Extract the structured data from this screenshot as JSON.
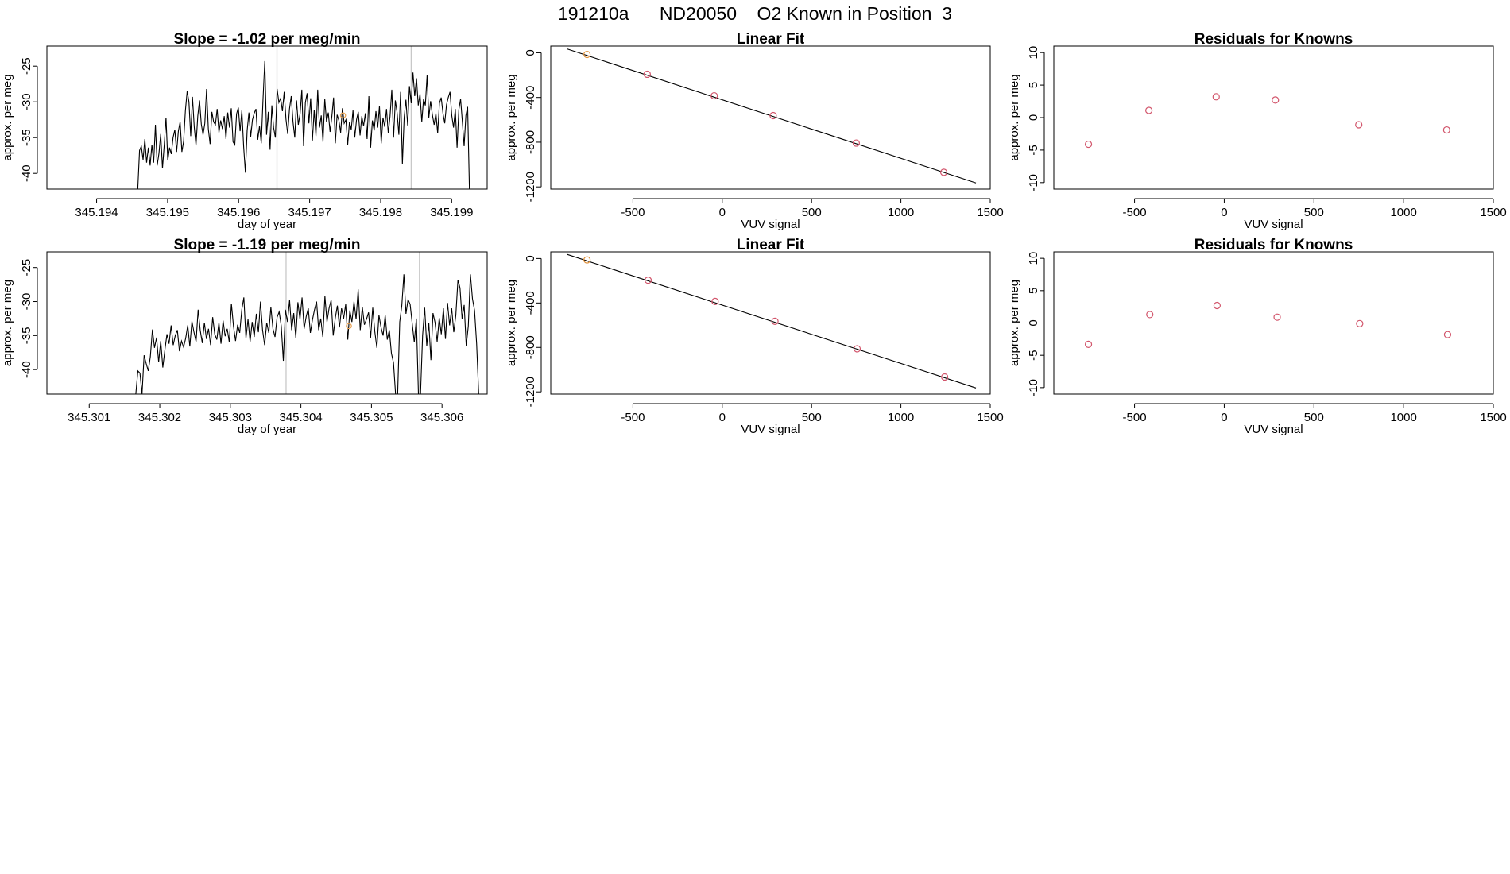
{
  "page_title": "191210a      ND20050    O2 Known in Position  3",
  "colors": {
    "line": "#000000",
    "marker": "#d2556b",
    "highlight_marker": "#e0913a",
    "marker_light": "#e8a050",
    "cursor": "#c8c8c8",
    "frame": "#000000"
  },
  "chart_data": [
    {
      "id": "ts1",
      "type": "line",
      "title": "Slope =  -1.02  per meg/min",
      "xlabel": "day of year",
      "ylabel": "approx. per meg",
      "xlim": [
        345.1933,
        345.1995
      ],
      "ylim": [
        -42.2,
        -22.2
      ],
      "x_ticks": [
        345.194,
        345.195,
        345.196,
        345.197,
        345.198,
        345.199
      ],
      "x_tick_labels": [
        "345.194",
        "345.195",
        "345.196",
        "345.197",
        "345.198",
        "345.199"
      ],
      "y_ticks": [
        -40,
        -35,
        -30,
        -25
      ],
      "y_tick_labels": [
        "-40",
        "-35",
        "-30",
        "-25"
      ],
      "vlines": [
        345.19654,
        345.19843
      ],
      "marked_point": {
        "x": 345.19747,
        "y": -31.9
      },
      "x_start": 345.19458,
      "x_end": 345.19925,
      "values": [
        -42.2,
        -36.8,
        -36.2,
        -38.1,
        -35.2,
        -38.5,
        -36.4,
        -38.9,
        -36.0,
        -38.5,
        -33.2,
        -38.9,
        -37.2,
        -34.5,
        -39.3,
        -36.0,
        -32.2,
        -38.2,
        -36.4,
        -37.3,
        -35.0,
        -33.9,
        -37.0,
        -34.1,
        -32.8,
        -37.0,
        -35.5,
        -31.2,
        -28.5,
        -30.0,
        -34.8,
        -29.3,
        -33.5,
        -36.1,
        -32.0,
        -29.8,
        -33.1,
        -34.6,
        -33.0,
        -28.2,
        -33.8,
        -35.9,
        -31.4,
        -32.8,
        -33.2,
        -31.0,
        -34.3,
        -32.6,
        -33.8,
        -32.0,
        -35.2,
        -31.5,
        -33.6,
        -30.9,
        -35.6,
        -36.0,
        -31.7,
        -30.8,
        -34.1,
        -31.2,
        -36.2,
        -39.9,
        -34.0,
        -31.5,
        -34.9,
        -32.5,
        -31.6,
        -31.0,
        -35.3,
        -33.4,
        -35.8,
        -29.6,
        -24.3,
        -34.6,
        -31.4,
        -36.7,
        -30.5,
        -33.6,
        -35.0,
        -28.2,
        -30.1,
        -29.5,
        -31.3,
        -28.6,
        -32.4,
        -34.5,
        -31.0,
        -29.2,
        -32.8,
        -35.0,
        -29.8,
        -33.2,
        -31.7,
        -28.3,
        -36.2,
        -30.1,
        -28.8,
        -33.0,
        -29.5,
        -35.4,
        -31.1,
        -34.8,
        -28.3,
        -33.6,
        -31.9,
        -35.6,
        -29.6,
        -32.8,
        -31.5,
        -34.2,
        -32.1,
        -29.4,
        -35.8,
        -31.8,
        -32.6,
        -34.3,
        -30.9,
        -33.0,
        -32.5,
        -36.0,
        -32.8,
        -33.9,
        -31.2,
        -35.0,
        -32.5,
        -31.4,
        -34.7,
        -32.0,
        -33.4,
        -31.6,
        -35.2,
        -29.2,
        -36.4,
        -32.6,
        -34.0,
        -31.3,
        -33.6,
        -30.6,
        -35.8,
        -32.2,
        -33.5,
        -31.0,
        -34.4,
        -32.0,
        -28.3,
        -35.0,
        -29.8,
        -31.5,
        -34.6,
        -28.6,
        -38.7,
        -32.2,
        -29.7,
        -33.3,
        -27.8,
        -30.2,
        -25.9,
        -29.2,
        -26.7,
        -30.5,
        -28.9,
        -32.8,
        -29.6,
        -30.5,
        -26.3,
        -32.2,
        -29.9,
        -31.8,
        -33.2,
        -31.6,
        -34.4,
        -30.2,
        -29.4,
        -31.6,
        -33.0,
        -30.4,
        -29.4,
        -28.6,
        -31.9,
        -33.6,
        -31.0,
        -36.4,
        -31.1,
        -29.6,
        -32.8,
        -36.2,
        -31.9,
        -30.7,
        -42.2
      ]
    },
    {
      "id": "fit1",
      "type": "scatter",
      "title": "Linear Fit",
      "xlabel": "VUV signal",
      "ylabel": "approx. per meg",
      "xlim": [
        -960,
        1500
      ],
      "ylim": [
        -1220,
        60
      ],
      "x_ticks": [
        -500,
        0,
        500,
        1000,
        1500
      ],
      "x_tick_labels": [
        "-500",
        "0",
        "500",
        "1000",
        "1500"
      ],
      "y_ticks": [
        -1200,
        -800,
        -400,
        0
      ],
      "y_tick_labels": [
        "-1200",
        "-800",
        "-400",
        "0"
      ],
      "points": [
        {
          "x": -757,
          "y": -15,
          "highlight": true
        },
        {
          "x": -420,
          "y": -192
        },
        {
          "x": -45,
          "y": -385
        },
        {
          "x": 285,
          "y": -562
        },
        {
          "x": 750,
          "y": -808
        },
        {
          "x": 1240,
          "y": -1070
        }
      ],
      "fit_line": {
        "x": [
          -870,
          1420
        ],
        "y": [
          35,
          -1165
        ]
      }
    },
    {
      "id": "res1",
      "type": "scatter",
      "title": "Residuals for Knowns",
      "xlabel": "VUV signal",
      "ylabel": "approx. per meg",
      "xlim": [
        -950,
        1500
      ],
      "ylim": [
        -11,
        11
      ],
      "x_ticks": [
        -500,
        0,
        500,
        1000,
        1500
      ],
      "x_tick_labels": [
        "-500",
        "0",
        "500",
        "1000",
        "1500"
      ],
      "y_ticks": [
        -10,
        -5,
        0,
        5,
        10
      ],
      "y_tick_labels": [
        "-10",
        "-5",
        "0",
        "5",
        "10"
      ],
      "points": [
        {
          "x": -757,
          "y": -4.1
        },
        {
          "x": -420,
          "y": 1.1
        },
        {
          "x": -45,
          "y": 3.2
        },
        {
          "x": 285,
          "y": 2.7
        },
        {
          "x": 750,
          "y": -1.1
        },
        {
          "x": 1240,
          "y": -1.9
        }
      ]
    },
    {
      "id": "ts2",
      "type": "line",
      "title": "Slope =  -1.19  per meg/min",
      "xlabel": "day of year",
      "ylabel": "approx. per meg",
      "xlim": [
        345.3004,
        345.30664
      ],
      "ylim": [
        -43.6,
        -22.7
      ],
      "x_ticks": [
        345.301,
        345.302,
        345.303,
        345.304,
        345.305,
        345.306
      ],
      "x_tick_labels": [
        "345.301",
        "345.302",
        "345.303",
        "345.304",
        "345.305",
        "345.306"
      ],
      "y_ticks": [
        -40,
        -35,
        -30,
        -25
      ],
      "y_tick_labels": [
        "-40",
        "-35",
        "-30",
        "-25"
      ],
      "vlines": [
        345.30379,
        345.30568
      ],
      "marked_point": {
        "x": 345.30468,
        "y": -33.6
      },
      "x_start": 345.30166,
      "x_end": 345.30652,
      "values": [
        -43.6,
        -40.2,
        -40.5,
        -43.6,
        -37.9,
        -39.1,
        -40.2,
        -38.1,
        -34.1,
        -36.8,
        -35.3,
        -38.9,
        -35.8,
        -39.7,
        -37.1,
        -34.8,
        -36.2,
        -33.5,
        -36.4,
        -35.0,
        -34.2,
        -37.3,
        -35.8,
        -36.7,
        -35.4,
        -33.5,
        -36.6,
        -32.9,
        -34.5,
        -35.9,
        -31.2,
        -34.2,
        -36.1,
        -33.1,
        -35.5,
        -34.0,
        -36.4,
        -32.3,
        -34.8,
        -35.6,
        -33.1,
        -36.2,
        -32.8,
        -35.1,
        -34.0,
        -36.0,
        -30.3,
        -33.6,
        -35.8,
        -33.4,
        -34.6,
        -31.2,
        -29.4,
        -35.4,
        -32.6,
        -35.9,
        -33.0,
        -35.2,
        -31.8,
        -34.5,
        -30.0,
        -34.2,
        -36.4,
        -33.1,
        -34.6,
        -30.8,
        -34.0,
        -35.2,
        -32.3,
        -31.5,
        -33.6,
        -38.7,
        -31.2,
        -33.0,
        -29.8,
        -34.2,
        -31.7,
        -35.3,
        -30.1,
        -32.6,
        -29.4,
        -34.0,
        -32.2,
        -31.0,
        -34.6,
        -32.7,
        -31.2,
        -30.0,
        -34.2,
        -32.5,
        -35.2,
        -29.2,
        -33.0,
        -31.0,
        -29.8,
        -35.0,
        -32.4,
        -30.6,
        -33.8,
        -31.0,
        -32.5,
        -30.4,
        -35.6,
        -31.3,
        -33.0,
        -30.0,
        -32.6,
        -28.2,
        -34.2,
        -30.8,
        -33.4,
        -32.6,
        -31.6,
        -35.3,
        -30.9,
        -34.4,
        -36.8,
        -32.0,
        -33.8,
        -35.0,
        -32.0,
        -35.6,
        -34.2,
        -37.6,
        -39.0,
        -43.6,
        -43.6,
        -33.0,
        -30.6,
        -26.0,
        -31.8,
        -29.7,
        -30.4,
        -33.2,
        -36.0,
        -32.5,
        -43.6,
        -43.6,
        -35.0,
        -30.9,
        -36.5,
        -33.2,
        -38.6,
        -31.7,
        -33.1,
        -35.9,
        -32.4,
        -34.8,
        -31.0,
        -35.5,
        -30.2,
        -33.5,
        -31.0,
        -34.5,
        -32.0,
        -26.8,
        -28.0,
        -32.5,
        -30.5,
        -36.5,
        -33.6,
        -26.0,
        -29.6,
        -31.3,
        -36.2,
        -43.6
      ]
    },
    {
      "id": "fit2",
      "type": "scatter",
      "title": "Linear Fit",
      "xlabel": "VUV signal",
      "ylabel": "approx. per meg",
      "xlim": [
        -960,
        1500
      ],
      "ylim": [
        -1220,
        60
      ],
      "x_ticks": [
        -500,
        0,
        500,
        1000,
        1500
      ],
      "x_tick_labels": [
        "-500",
        "0",
        "500",
        "1000",
        "1500"
      ],
      "y_ticks": [
        -1200,
        -800,
        -400,
        0
      ],
      "y_tick_labels": [
        "-1200",
        "-800",
        "-400",
        "0"
      ],
      "points": [
        {
          "x": -757,
          "y": -12,
          "highlight": true
        },
        {
          "x": -415,
          "y": -195
        },
        {
          "x": -40,
          "y": -386
        },
        {
          "x": 295,
          "y": -565
        },
        {
          "x": 755,
          "y": -812
        },
        {
          "x": 1245,
          "y": -1066
        }
      ],
      "fit_line": {
        "x": [
          -870,
          1420
        ],
        "y": [
          38,
          -1165
        ]
      }
    },
    {
      "id": "res2",
      "type": "scatter",
      "title": "Residuals for Knowns",
      "xlabel": "VUV signal",
      "ylabel": "approx. per meg",
      "xlim": [
        -950,
        1500
      ],
      "ylim": [
        -11,
        11
      ],
      "x_ticks": [
        -500,
        0,
        500,
        1000,
        1500
      ],
      "x_tick_labels": [
        "-500",
        "0",
        "500",
        "1000",
        "1500"
      ],
      "y_ticks": [
        -10,
        -5,
        0,
        5,
        10
      ],
      "y_tick_labels": [
        "-10",
        "-5",
        "0",
        "5",
        "10"
      ],
      "points": [
        {
          "x": -757,
          "y": -3.3
        },
        {
          "x": -415,
          "y": 1.3
        },
        {
          "x": -40,
          "y": 2.7
        },
        {
          "x": 295,
          "y": 0.9
        },
        {
          "x": 755,
          "y": -0.1
        },
        {
          "x": 1245,
          "y": -1.8
        }
      ]
    }
  ]
}
